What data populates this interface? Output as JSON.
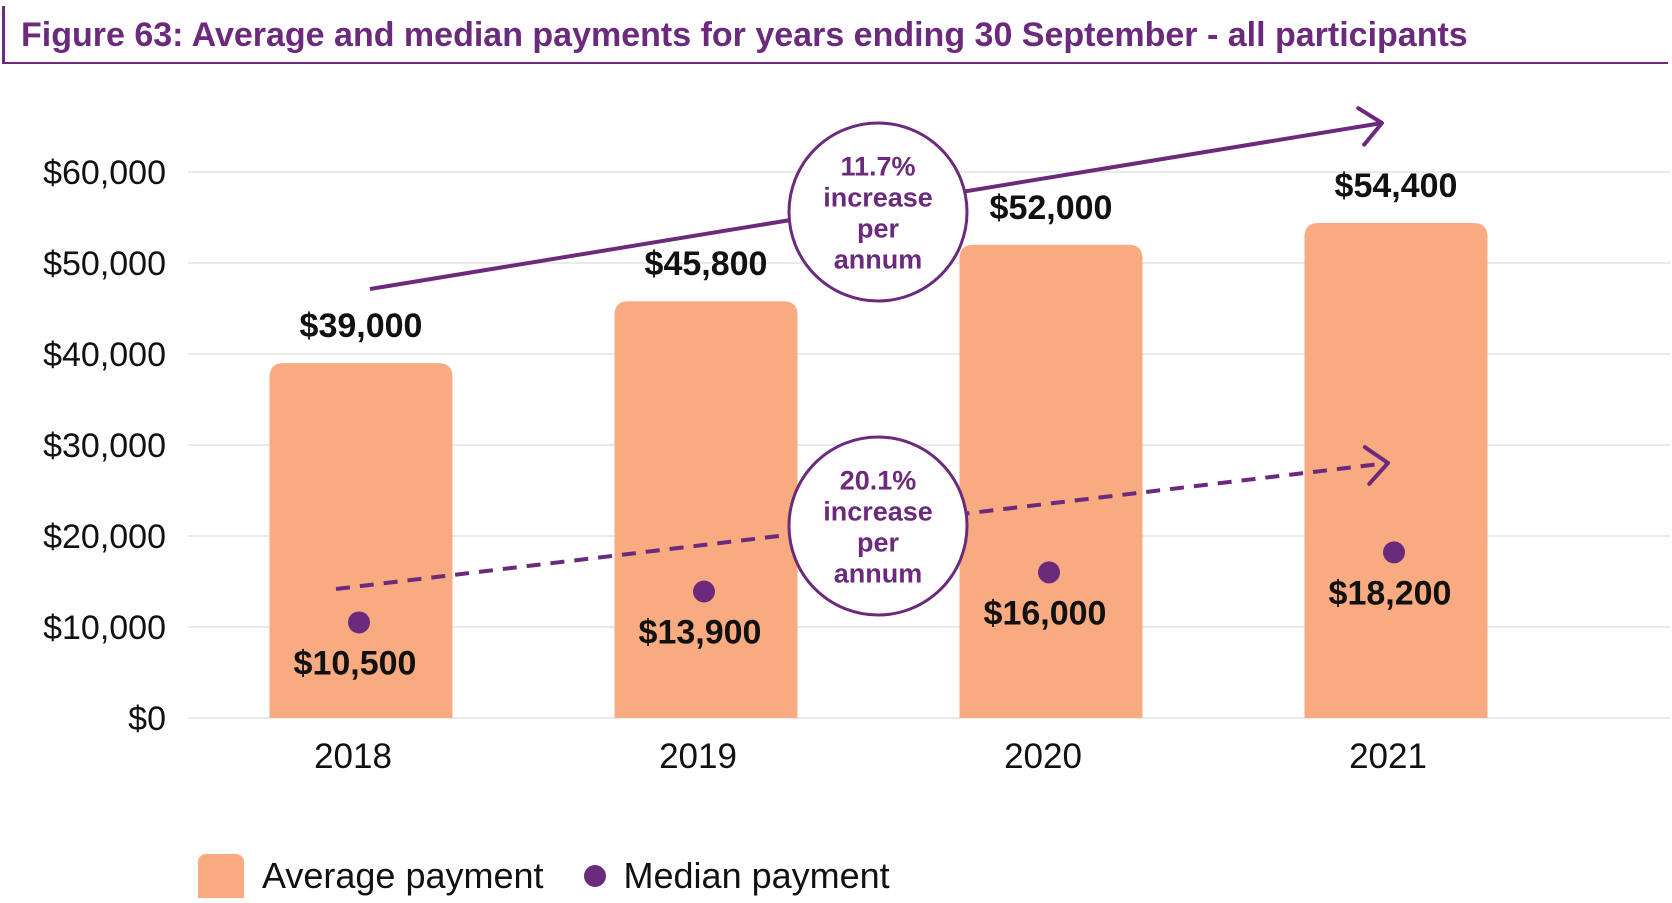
{
  "title": "Figure 63: Average and median payments for years ending 30 September - all participants",
  "chart_data": {
    "type": "bar",
    "categories": [
      "2018",
      "2019",
      "2020",
      "2021"
    ],
    "series": [
      {
        "name": "Average payment",
        "type": "bar",
        "values": [
          39000,
          45800,
          52000,
          54400
        ],
        "labels": [
          "$39,000",
          "$45,800",
          "$52,000",
          "$54,400"
        ],
        "color": "#f8ab80"
      },
      {
        "name": "Median payment",
        "type": "scatter",
        "values": [
          10500,
          13900,
          16000,
          18200
        ],
        "labels": [
          "$10,500",
          "$13,900",
          "$16,000",
          "$18,200"
        ],
        "color": "#6b2a7b"
      }
    ],
    "ylim": [
      0,
      60000
    ],
    "yticks": [
      0,
      10000,
      20000,
      30000,
      40000,
      50000,
      60000
    ],
    "ytick_labels": [
      "$0",
      "$10,000",
      "$20,000",
      "$30,000",
      "$40,000",
      "$50,000",
      "$60,000"
    ],
    "grid": true,
    "annotations": [
      {
        "series": "Average payment",
        "style": "solid",
        "lines": [
          "11.7%",
          "increase",
          "per",
          "annum"
        ]
      },
      {
        "series": "Median payment",
        "style": "dashed",
        "lines": [
          "20.1%",
          "increase",
          "per",
          "annum"
        ]
      }
    ],
    "legend_position": "bottom-left"
  },
  "legend": [
    {
      "label": "Average payment",
      "marker": "rounded-square"
    },
    {
      "label": "Median payment",
      "marker": "circle"
    }
  ],
  "colors": {
    "accent": "#6b2a7b",
    "bar": "#f8ab80",
    "grid": "#e3e3e3",
    "text": "#111111"
  }
}
